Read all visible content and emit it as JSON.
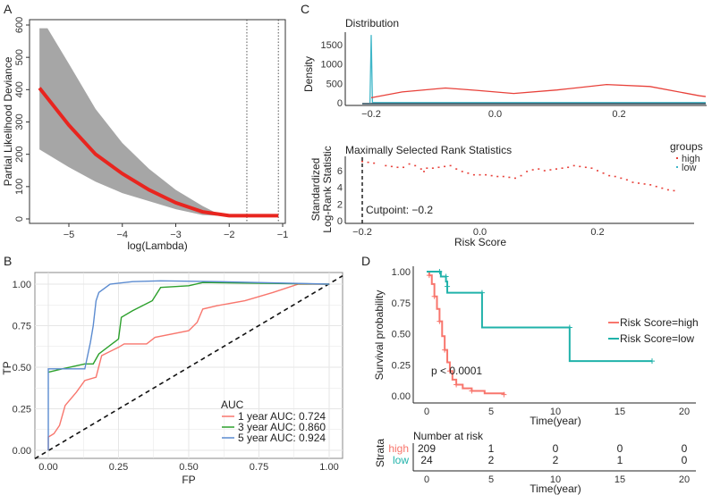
{
  "chart_data": [
    {
      "panel": "A",
      "type": "line",
      "xlabel": "log(Lambda)",
      "ylabel": "Partial Likelihood Deviance",
      "xlim": [
        -5.7,
        -1
      ],
      "ylim": [
        0,
        600
      ],
      "xticks": [
        -5,
        -4,
        -3,
        -2,
        -1
      ],
      "yticks": [
        0,
        100,
        200,
        300,
        400,
        500,
        600
      ],
      "mean": [
        [
          -5.55,
          405
        ],
        [
          -5,
          290
        ],
        [
          -4.5,
          200
        ],
        [
          -4,
          140
        ],
        [
          -3.5,
          90
        ],
        [
          -3,
          50
        ],
        [
          -2.5,
          22
        ],
        [
          -2,
          10
        ],
        [
          -1.08,
          10
        ]
      ],
      "upper": [
        [
          -5.55,
          590
        ],
        [
          -5.4,
          590
        ],
        [
          -5,
          480
        ],
        [
          -4.5,
          340
        ],
        [
          -4,
          235
        ],
        [
          -3.5,
          155
        ],
        [
          -3,
          90
        ],
        [
          -2.5,
          40
        ],
        [
          -2.2,
          15
        ],
        [
          -2,
          12
        ],
        [
          -1.08,
          12
        ]
      ],
      "lower": [
        [
          -5.55,
          215
        ],
        [
          -5,
          160
        ],
        [
          -4.5,
          115
        ],
        [
          -4,
          80
        ],
        [
          -3.5,
          55
        ],
        [
          -3,
          30
        ],
        [
          -2.5,
          12
        ],
        [
          -2,
          8
        ],
        [
          -1.08,
          8
        ]
      ],
      "vlines": [
        -1.67,
        -1.08
      ],
      "colors": {
        "mean": "#e8251f",
        "band": "#a6a6a6"
      }
    },
    {
      "panel": "B",
      "type": "line",
      "xlabel": "FP",
      "ylabel": "TP",
      "xlim": [
        -0.05,
        1.05
      ],
      "ylim": [
        -0.05,
        1.07
      ],
      "xticks": [
        "0.00",
        "0.25",
        "0.50",
        "0.75",
        "1.00"
      ],
      "yticks": [
        "0.00",
        "0.25",
        "0.50",
        "0.75",
        "1.00"
      ],
      "legend_title": "AUC",
      "grid": true,
      "series": [
        {
          "name": "1 year AUC: 0.724",
          "color": "#f8766d",
          "points": [
            [
              0,
              0
            ],
            [
              0,
              0.08
            ],
            [
              0.02,
              0.1
            ],
            [
              0.04,
              0.15
            ],
            [
              0.06,
              0.27
            ],
            [
              0.1,
              0.35
            ],
            [
              0.13,
              0.42
            ],
            [
              0.17,
              0.44
            ],
            [
              0.19,
              0.57
            ],
            [
              0.25,
              0.62
            ],
            [
              0.27,
              0.64
            ],
            [
              0.35,
              0.64
            ],
            [
              0.38,
              0.68
            ],
            [
              0.5,
              0.72
            ],
            [
              0.53,
              0.77
            ],
            [
              0.55,
              0.85
            ],
            [
              0.6,
              0.87
            ],
            [
              0.7,
              0.9
            ],
            [
              0.8,
              0.95
            ],
            [
              0.89,
              1.0
            ],
            [
              1,
              1
            ]
          ]
        },
        {
          "name": "3 year AUC: 0.860",
          "color": "#2ca02c",
          "points": [
            [
              0,
              0.47
            ],
            [
              0.05,
              0.49
            ],
            [
              0.13,
              0.52
            ],
            [
              0.16,
              0.52
            ],
            [
              0.18,
              0.58
            ],
            [
              0.25,
              0.67
            ],
            [
              0.26,
              0.8
            ],
            [
              0.3,
              0.84
            ],
            [
              0.37,
              0.9
            ],
            [
              0.4,
              0.98
            ],
            [
              0.5,
              0.99
            ],
            [
              0.55,
              1.01
            ],
            [
              1,
              1
            ]
          ]
        },
        {
          "name": "5 year AUC: 0.924",
          "color": "#5b8bd0",
          "points": [
            [
              0,
              0
            ],
            [
              0,
              0.49
            ],
            [
              0.13,
              0.49
            ],
            [
              0.15,
              0.65
            ],
            [
              0.16,
              0.75
            ],
            [
              0.17,
              0.9
            ],
            [
              0.18,
              0.95
            ],
            [
              0.22,
              1.0
            ],
            [
              0.3,
              1.015
            ],
            [
              0.4,
              1.02
            ],
            [
              0.6,
              1.015
            ],
            [
              1,
              1
            ]
          ]
        }
      ]
    },
    {
      "panel": "C-top",
      "type": "line",
      "title": "Distribution",
      "ylabel": "Density",
      "xlim": [
        -0.22,
        0.35
      ],
      "ylim": [
        0,
        1800
      ],
      "xticks": [
        "-0.2",
        "0.0",
        "0.2"
      ],
      "yticks": [
        "0",
        "500",
        "1000",
        "1500"
      ],
      "series": [
        {
          "name": "high",
          "color": "#e8413a",
          "points": [
            [
              -0.2,
              130
            ],
            [
              -0.15,
              280
            ],
            [
              -0.08,
              380
            ],
            [
              -0.03,
              320
            ],
            [
              0.03,
              240
            ],
            [
              0.1,
              330
            ],
            [
              0.18,
              470
            ],
            [
              0.25,
              420
            ],
            [
              0.33,
              180
            ],
            [
              0.34,
              160
            ]
          ]
        },
        {
          "name": "low",
          "color": "#3fb6c8",
          "points": [
            [
              -0.202,
              0
            ],
            [
              -0.2,
              1750
            ],
            [
              -0.198,
              5
            ],
            [
              0.34,
              5
            ]
          ]
        }
      ]
    },
    {
      "panel": "C-bottom",
      "type": "scatter",
      "title": "Maximally Selected Rank Statistics",
      "xlabel": "Risk Score",
      "ylabel": "Standardized\nLog-Rank Statistic",
      "xlim": [
        -0.22,
        0.35
      ],
      "ylim": [
        0,
        7.5
      ],
      "xticks": [
        "-0.2",
        "0.0",
        "0.2"
      ],
      "yticks": [
        "0",
        "2",
        "4",
        "6"
      ],
      "cutpoint": -0.2,
      "cutpoint_label": "Cutpoint: −0.2",
      "legend_title": "groups",
      "legend": [
        {
          "name": "high",
          "color": "#e8413a"
        },
        {
          "name": "low",
          "color": "#3fb6c8"
        }
      ],
      "points": [
        [
          -0.2,
          7.1
        ],
        [
          -0.19,
          7.0
        ],
        [
          -0.18,
          6.9
        ],
        [
          -0.16,
          6.6
        ],
        [
          -0.15,
          6.5
        ],
        [
          -0.14,
          6.4
        ],
        [
          -0.13,
          6.4
        ],
        [
          -0.12,
          6.8
        ],
        [
          -0.11,
          6.6
        ],
        [
          -0.1,
          6.2
        ],
        [
          -0.095,
          5.9
        ],
        [
          -0.09,
          6.3
        ],
        [
          -0.08,
          6.3
        ],
        [
          -0.07,
          6.4
        ],
        [
          -0.06,
          6.5
        ],
        [
          -0.05,
          6.6
        ],
        [
          -0.04,
          6.2
        ],
        [
          -0.03,
          5.9
        ],
        [
          -0.02,
          5.7
        ],
        [
          -0.01,
          5.5
        ],
        [
          0.0,
          5.5
        ],
        [
          0.01,
          5.5
        ],
        [
          0.02,
          5.4
        ],
        [
          0.03,
          5.3
        ],
        [
          0.04,
          5.3
        ],
        [
          0.05,
          5.2
        ],
        [
          0.06,
          5.1
        ],
        [
          0.07,
          5.4
        ],
        [
          0.08,
          5.9
        ],
        [
          0.09,
          6.1
        ],
        [
          0.1,
          6.2
        ],
        [
          0.11,
          6.0
        ],
        [
          0.12,
          6.1
        ],
        [
          0.13,
          6.2
        ],
        [
          0.14,
          6.3
        ],
        [
          0.15,
          6.4
        ],
        [
          0.16,
          6.6
        ],
        [
          0.17,
          6.5
        ],
        [
          0.18,
          6.4
        ],
        [
          0.19,
          6.3
        ],
        [
          0.2,
          6.0
        ],
        [
          0.21,
          5.7
        ],
        [
          0.22,
          5.4
        ],
        [
          0.23,
          5.3
        ],
        [
          0.24,
          5.1
        ],
        [
          0.25,
          4.9
        ],
        [
          0.26,
          4.6
        ],
        [
          0.27,
          4.5
        ],
        [
          0.28,
          4.4
        ],
        [
          0.29,
          4.3
        ],
        [
          0.3,
          4.1
        ],
        [
          0.31,
          3.9
        ],
        [
          0.32,
          3.7
        ],
        [
          0.33,
          3.6
        ]
      ]
    },
    {
      "panel": "D",
      "type": "line",
      "xlabel": "Time(year)",
      "ylabel": "Survival probability",
      "xlim": [
        -1,
        21
      ],
      "ylim": [
        -0.03,
        1.03
      ],
      "xticks": [
        "0",
        "5",
        "10",
        "15",
        "20"
      ],
      "yticks": [
        "0.00",
        "0.25",
        "0.50",
        "0.75",
        "1.00"
      ],
      "annotation": "p < 0.0001",
      "series": [
        {
          "name": "Risk Score=high",
          "color": "#f8766d",
          "points": [
            [
              0,
              1
            ],
            [
              0.2,
              0.97
            ],
            [
              0.4,
              0.9
            ],
            [
              0.6,
              0.8
            ],
            [
              0.8,
              0.7
            ],
            [
              1,
              0.6
            ],
            [
              1.2,
              0.48
            ],
            [
              1.4,
              0.37
            ],
            [
              1.6,
              0.27
            ],
            [
              1.8,
              0.2
            ],
            [
              2,
              0.13
            ],
            [
              2.3,
              0.09
            ],
            [
              2.8,
              0.06
            ],
            [
              3.5,
              0.04
            ],
            [
              4.5,
              0.02
            ],
            [
              6,
              0.01
            ]
          ]
        },
        {
          "name": "Risk Score=low",
          "color": "#20b2aa",
          "points": [
            [
              0,
              1
            ],
            [
              1,
              1
            ],
            [
              1.1,
              0.96
            ],
            [
              1.5,
              0.96
            ],
            [
              1.5,
              0.92
            ],
            [
              1.6,
              0.88
            ],
            [
              1.6,
              0.83
            ],
            [
              4.3,
              0.83
            ],
            [
              4.3,
              0.55
            ],
            [
              11.1,
              0.55
            ],
            [
              11.1,
              0.28
            ],
            [
              17.5,
              0.28
            ]
          ]
        }
      ],
      "risk_table": {
        "title": "Number at risk",
        "ylabel": "Strata",
        "xlabel": "Time(year)",
        "times": [
          "0",
          "5",
          "10",
          "15",
          "20"
        ],
        "rows": [
          {
            "label": "high",
            "color": "#f8766d",
            "values": [
              "209",
              "1",
              "0",
              "0",
              "0"
            ]
          },
          {
            "label": "low",
            "color": "#20b2aa",
            "values": [
              "24",
              "2",
              "2",
              "1",
              "0"
            ]
          }
        ]
      }
    }
  ],
  "panels": {
    "A": "A",
    "B": "B",
    "C": "C",
    "D": "D"
  }
}
